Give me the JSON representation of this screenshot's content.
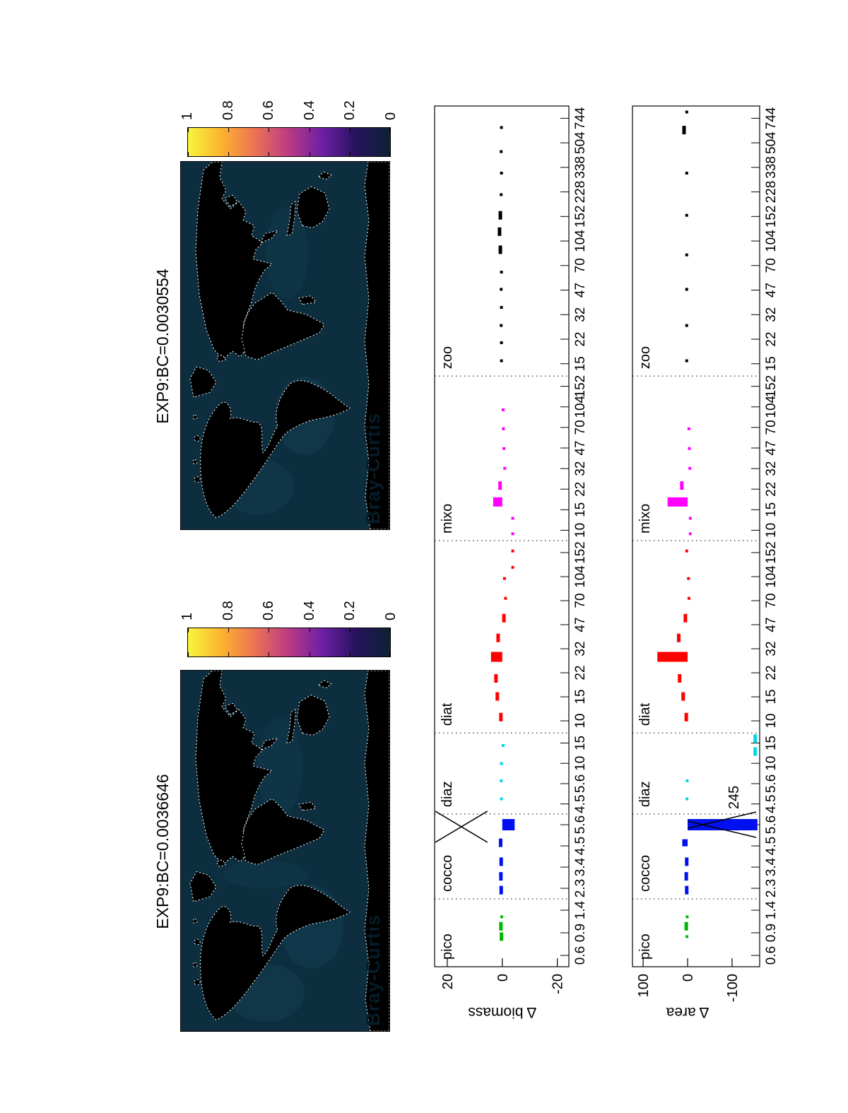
{
  "figure": {
    "maps": [
      {
        "title": "EXP9:BC=0.0036646",
        "watermark": "Bray-Curtis"
      },
      {
        "title": "EXP9:BC=0.0030554",
        "watermark": "Bray-Curtis"
      }
    ],
    "colorbar_ticks": [
      "1",
      "0.8",
      "0.6",
      "0.4",
      "0.2",
      "0"
    ]
  },
  "colors": {
    "ocean": "#0d2e3e",
    "ocean_light": "#17485e",
    "land": "#000000",
    "coast": "#ffffff",
    "green": "#00b800",
    "blue": "#0010ee",
    "cyan": "#00d8e8",
    "red": "#ff0000",
    "magenta": "#ff00ff",
    "black": "#000000",
    "cb_gradient": [
      "#f8f53d",
      "#fcb22f",
      "#ec7156",
      "#b93a84",
      "#6c1fa5",
      "#27125e",
      "#0c2233"
    ]
  },
  "chart_data": [
    {
      "type": "bar",
      "ylabel": "Δ biomass",
      "ylim": [
        -24.2,
        24.6
      ],
      "yticks": [
        {
          "value": 20,
          "label": "20"
        },
        {
          "value": 0,
          "label": "0"
        },
        {
          "value": -20,
          "label": "-20"
        }
      ],
      "categories": [
        {
          "name": "pico",
          "f0": 0.0,
          "f1": 0.0788,
          "ticks": [
            "0.6",
            "0.9",
            "1.4"
          ]
        },
        {
          "name": "cocco",
          "f0": 0.0788,
          "f1": 0.1773,
          "ticks": [
            "2.3",
            "3.4",
            "4.5",
            "5.6"
          ]
        },
        {
          "name": "diaz",
          "f0": 0.1773,
          "f1": 0.2717,
          "ticks": [
            "4.5",
            "5.6",
            "10",
            "15"
          ]
        },
        {
          "name": "diat",
          "f0": 0.2717,
          "f1": 0.4951,
          "ticks": [
            "10",
            "15",
            "22",
            "32",
            "47",
            "70",
            "104",
            "152"
          ]
        },
        {
          "name": "mixo",
          "f0": 0.4951,
          "f1": 0.6863,
          "ticks": [
            "10",
            "15",
            "22",
            "32",
            "47",
            "70",
            "104",
            "152"
          ]
        },
        {
          "name": "zoo",
          "f0": 0.6863,
          "f1": 1.0,
          "ticks": [
            "15",
            "22",
            "32",
            "47",
            "70",
            "104",
            "152",
            "228",
            "338",
            "504",
            "744"
          ]
        }
      ],
      "bars": [
        {
          "color": "green",
          "items": [
            {
              "f": 0.035,
              "style": "dash",
              "v": 0.3
            },
            {
              "f": 0.047,
              "style": "dash",
              "v": 0.5
            },
            {
              "f": 0.058,
              "style": "dot",
              "v": 0.2
            }
          ]
        },
        {
          "color": "blue",
          "items": [
            {
              "f": 0.089,
              "style": "dash",
              "v": 0.4
            },
            {
              "f": 0.105,
              "style": "dash",
              "v": 0.5
            },
            {
              "f": 0.122,
              "style": "dash",
              "v": 0.4
            },
            {
              "f": 0.144,
              "style": "dash",
              "v": 0.6
            },
            {
              "f": 0.165,
              "style": "bar",
              "v": -4.5,
              "w": 16
            }
          ]
        },
        {
          "color": "cyan",
          "items": [
            {
              "f": 0.195,
              "style": "dot",
              "v": 0.3
            },
            {
              "f": 0.216,
              "style": "dot",
              "v": 0.4
            },
            {
              "f": 0.236,
              "style": "dot",
              "v": 0.3
            },
            {
              "f": 0.257,
              "style": "dot",
              "v": -0.3
            }
          ]
        },
        {
          "color": "red",
          "items": [
            {
              "f": 0.29,
              "style": "dash",
              "v": 0.5
            },
            {
              "f": 0.314,
              "style": "dash",
              "v": 1.8
            },
            {
              "f": 0.335,
              "style": "dash",
              "v": 2.3
            },
            {
              "f": 0.36,
              "style": "bar",
              "v": 4.1,
              "w": 14
            },
            {
              "f": 0.382,
              "style": "dash",
              "v": 1.5
            },
            {
              "f": 0.405,
              "style": "dash",
              "v": -0.6
            },
            {
              "f": 0.428,
              "style": "dot",
              "v": -1.2
            },
            {
              "f": 0.451,
              "style": "dot",
              "v": -0.8
            },
            {
              "f": 0.464,
              "style": "dot",
              "v": -3.8
            },
            {
              "f": 0.483,
              "style": "dot",
              "v": -3.8
            }
          ]
        },
        {
          "color": "magenta",
          "items": [
            {
              "f": 0.503,
              "style": "dot",
              "v": -3.8
            },
            {
              "f": 0.521,
              "style": "dot",
              "v": -3.8
            },
            {
              "f": 0.54,
              "style": "bar",
              "v": 3.3,
              "w": 13
            },
            {
              "f": 0.559,
              "style": "dash",
              "v": 0.8
            },
            {
              "f": 0.579,
              "style": "dot",
              "v": -0.9
            },
            {
              "f": 0.602,
              "style": "dot",
              "v": -0.6
            },
            {
              "f": 0.625,
              "style": "dot",
              "v": -0.4
            },
            {
              "f": 0.647,
              "style": "dot",
              "v": -0.3
            }
          ]
        },
        {
          "color": "black",
          "items": [
            {
              "f": 0.704,
              "style": "dot",
              "v": 0.3
            },
            {
              "f": 0.725,
              "style": "dot",
              "v": 0.3
            },
            {
              "f": 0.745,
              "style": "dot",
              "v": 0.4
            },
            {
              "f": 0.766,
              "style": "dot",
              "v": 0.3
            },
            {
              "f": 0.787,
              "style": "dot",
              "v": 0.4
            },
            {
              "f": 0.807,
              "style": "dot",
              "v": 0.3
            },
            {
              "f": 0.833,
              "style": "dash",
              "v": 0.7
            },
            {
              "f": 0.854,
              "style": "dash",
              "v": 1.0
            },
            {
              "f": 0.873,
              "style": "dash",
              "v": 0.7
            },
            {
              "f": 0.897,
              "style": "dot",
              "v": 0.4
            },
            {
              "f": 0.922,
              "style": "dot",
              "v": 0.3
            },
            {
              "f": 0.947,
              "style": "dot",
              "v": 0.4
            },
            {
              "f": 0.975,
              "style": "dot",
              "v": 0.3
            }
          ]
        }
      ],
      "markers": [
        {
          "type": "cross",
          "f": 0.1626,
          "v1": 24.4,
          "v2": 5.4,
          "half_w": 22
        }
      ],
      "annotations": []
    },
    {
      "type": "bar",
      "ylabel": "Δ area",
      "ylim": [
        -162,
        124
      ],
      "yticks": [
        {
          "value": 100,
          "label": "100"
        },
        {
          "value": 0,
          "label": "0"
        },
        {
          "value": -100,
          "label": "-100"
        }
      ],
      "categories": [
        {
          "name": "pico",
          "f0": 0.0,
          "f1": 0.0788,
          "ticks": [
            "0.6",
            "0.9",
            "1.4"
          ]
        },
        {
          "name": "cocco",
          "f0": 0.0788,
          "f1": 0.1773,
          "ticks": [
            "2.3",
            "3.4",
            "4.5",
            "5.6"
          ]
        },
        {
          "name": "diaz",
          "f0": 0.1773,
          "f1": 0.2717,
          "ticks": [
            "4.5",
            "5.6",
            "10",
            "15"
          ]
        },
        {
          "name": "diat",
          "f0": 0.2717,
          "f1": 0.4951,
          "ticks": [
            "10",
            "15",
            "22",
            "32",
            "47",
            "70",
            "104",
            "152"
          ]
        },
        {
          "name": "mixo",
          "f0": 0.4951,
          "f1": 0.6863,
          "ticks": [
            "10",
            "15",
            "22",
            "32",
            "47",
            "70",
            "104",
            "152"
          ]
        },
        {
          "name": "zoo",
          "f0": 0.6863,
          "f1": 1.0,
          "ticks": [
            "15",
            "22",
            "32",
            "47",
            "70",
            "104",
            "152",
            "228",
            "338",
            "504",
            "744"
          ]
        }
      ],
      "bars": [
        {
          "color": "green",
          "items": [
            {
              "f": 0.035,
              "style": "dot",
              "v": 1.5
            },
            {
              "f": 0.047,
              "style": "dash",
              "v": 3
            },
            {
              "f": 0.058,
              "style": "dot",
              "v": 1
            }
          ]
        },
        {
          "color": "blue",
          "items": [
            {
              "f": 0.089,
              "style": "dash",
              "v": 2
            },
            {
              "f": 0.105,
              "style": "dash",
              "v": 3
            },
            {
              "f": 0.122,
              "style": "dash",
              "v": 2
            },
            {
              "f": 0.144,
              "style": "bar",
              "v": 12,
              "w": 10
            },
            {
              "f": 0.165,
              "style": "bar",
              "v": -157,
              "w": 16
            }
          ]
        },
        {
          "color": "cyan",
          "items": [
            {
              "f": 0.195,
              "style": "dot",
              "v": 1.5
            },
            {
              "f": 0.216,
              "style": "dot",
              "v": 1
            },
            {
              "f": 0.25,
              "style": "dash",
              "v": -152
            },
            {
              "f": 0.265,
              "style": "dash",
              "v": -152
            }
          ]
        },
        {
          "color": "red",
          "items": [
            {
              "f": 0.29,
              "style": "dash",
              "v": 3
            },
            {
              "f": 0.314,
              "style": "dash",
              "v": 10
            },
            {
              "f": 0.335,
              "style": "dash",
              "v": 18
            },
            {
              "f": 0.36,
              "style": "bar",
              "v": 68,
              "w": 14
            },
            {
              "f": 0.382,
              "style": "dash",
              "v": 20
            },
            {
              "f": 0.405,
              "style": "dash",
              "v": 5
            },
            {
              "f": 0.428,
              "style": "dot",
              "v": -3
            },
            {
              "f": 0.451,
              "style": "dot",
              "v": -2
            },
            {
              "f": 0.483,
              "style": "dot",
              "v": 2
            }
          ]
        },
        {
          "color": "magenta",
          "items": [
            {
              "f": 0.503,
              "style": "dot",
              "v": -6
            },
            {
              "f": 0.521,
              "style": "dot",
              "v": -6
            },
            {
              "f": 0.54,
              "style": "bar",
              "v": 45,
              "w": 13
            },
            {
              "f": 0.559,
              "style": "dash",
              "v": 13
            },
            {
              "f": 0.579,
              "style": "dot",
              "v": -5
            },
            {
              "f": 0.602,
              "style": "dot",
              "v": -4
            },
            {
              "f": 0.625,
              "style": "dot",
              "v": -3
            }
          ]
        },
        {
          "color": "black",
          "items": [
            {
              "f": 0.704,
              "style": "dot",
              "v": 2
            },
            {
              "f": 0.745,
              "style": "dot",
              "v": 2
            },
            {
              "f": 0.787,
              "style": "dot",
              "v": 2
            },
            {
              "f": 0.827,
              "style": "dot",
              "v": 2
            },
            {
              "f": 0.873,
              "style": "dot",
              "v": 2
            },
            {
              "f": 0.922,
              "style": "dot",
              "v": 2
            },
            {
              "f": 0.972,
              "style": "dash",
              "v": 8
            },
            {
              "f": 0.993,
              "style": "dot",
              "v": 2
            }
          ]
        }
      ],
      "markers": [
        {
          "type": "bowtie",
          "f": 0.165,
          "v1": -1,
          "v2": -154,
          "half_w": 13
        }
      ],
      "annotations": [
        {
          "text": "245",
          "f": 0.183,
          "v": -114
        }
      ]
    }
  ]
}
